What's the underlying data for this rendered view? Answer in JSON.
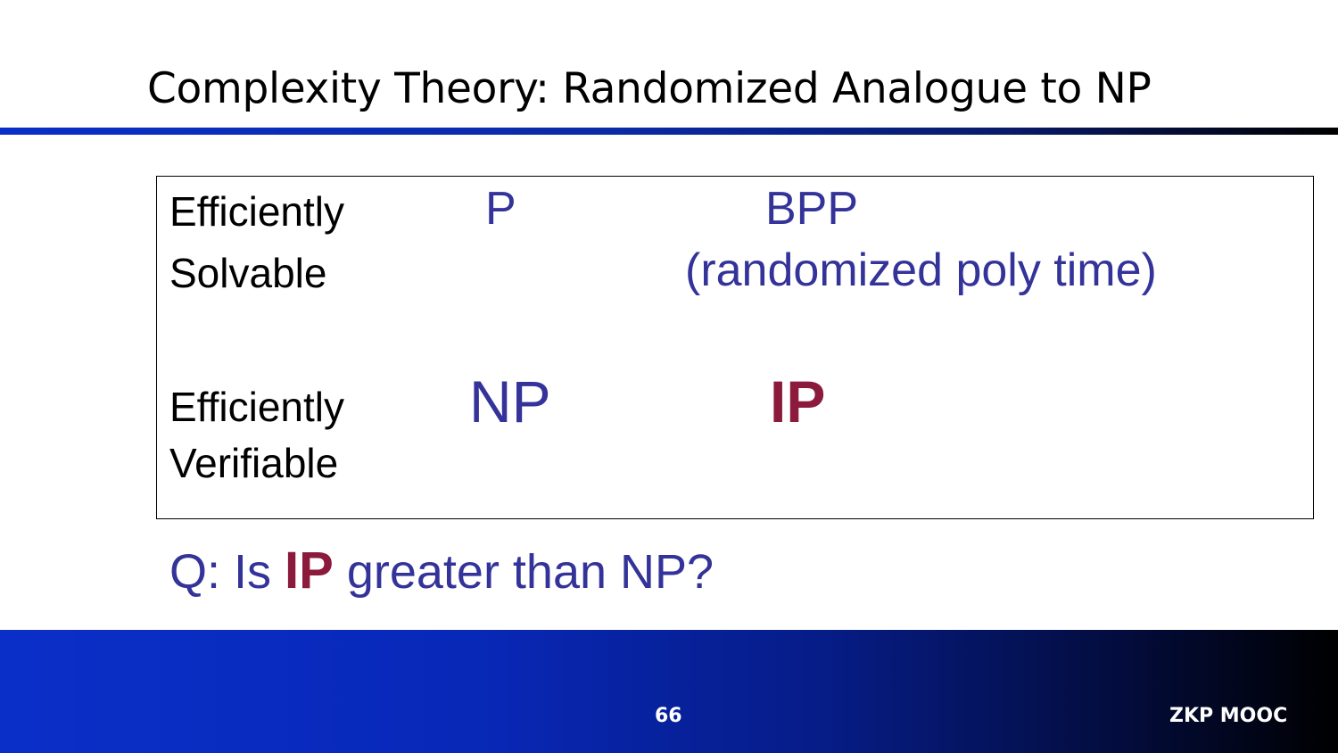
{
  "slide": {
    "title": "Complexity Theory: Randomized Analogue to NP"
  },
  "table": {
    "row_solvable": {
      "label_line1": "Efficiently",
      "label_line2": "Solvable",
      "deterministic": "P",
      "randomized": "BPP",
      "randomized_note": "(randomized poly time)"
    },
    "row_verifiable": {
      "label_line1": "Efficiently",
      "label_line2": "Verifiable",
      "deterministic": "NP",
      "randomized": "IP"
    }
  },
  "question": {
    "prefix": "Q: Is ",
    "highlight": "IP",
    "suffix": " greater than NP?"
  },
  "footer": {
    "page_number": "66",
    "brand": "ZKP MOOC"
  },
  "colors": {
    "class_text": "#333399",
    "highlight": "#8b1a3c",
    "accent_blue": "#0a2fc8"
  }
}
